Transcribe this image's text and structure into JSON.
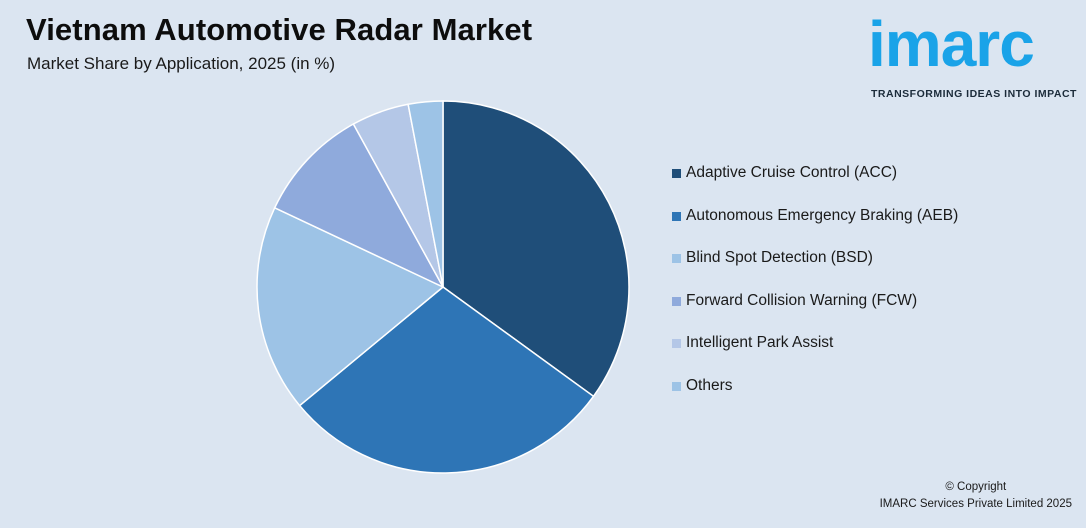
{
  "header": {
    "title": "Vietnam Automotive Radar Market",
    "subtitle": "Market Share by Application, 2025 (in %)"
  },
  "logo": {
    "word": "imarc",
    "tagline": "TRANSFORMING IDEAS INTO IMPACT",
    "color": "#1aa3e8"
  },
  "chart_data": {
    "type": "pie",
    "title": "Vietnam Automotive Radar Market",
    "subtitle": "Market Share by Application, 2025 (in %)",
    "start_angle_deg": 0,
    "direction": "clockwise",
    "legend_placement": "right",
    "slices": [
      {
        "label": "Adaptive Cruise Control (ACC)",
        "value": 35,
        "color": "#1f4e79"
      },
      {
        "label": "Autonomous Emergency Braking (AEB)",
        "value": 29,
        "color": "#2e75b6"
      },
      {
        "label": "Blind Spot Detection (BSD)",
        "value": 18,
        "color": "#9dc3e6"
      },
      {
        "label": "Forward Collision Warning (FCW)",
        "value": 10,
        "color": "#8faadc"
      },
      {
        "label": "Intelligent Park Assist",
        "value": 5,
        "color": "#b4c7e7"
      },
      {
        "label": "Others",
        "value": 3,
        "color": "#9dc3e6"
      }
    ]
  },
  "footer": {
    "copyright_line1": "© Copyright",
    "copyright_line2": "IMARC Services Private Limited 2025"
  }
}
